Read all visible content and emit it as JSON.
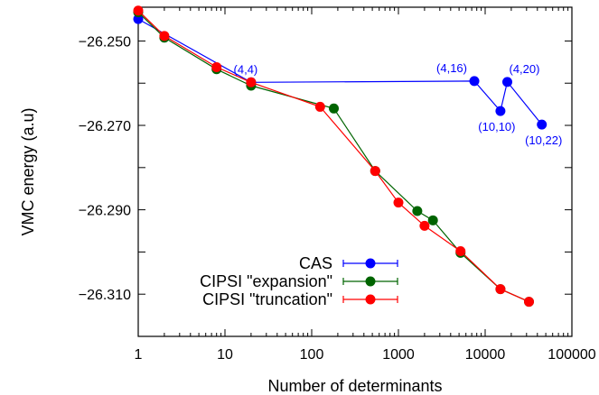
{
  "chart_data": {
    "type": "line",
    "xlabel": "Number of determinants",
    "ylabel": "VMC energy (a.u)",
    "xscale": "log",
    "xlim": [
      1,
      100000
    ],
    "ylim": [
      -26.32,
      -26.242
    ],
    "xticks": [
      1,
      10,
      100,
      1000,
      10000,
      100000
    ],
    "xtick_labels": [
      "1",
      "10",
      "100",
      "1000",
      "10000",
      "100000"
    ],
    "yticks": [
      -26.25,
      -26.26,
      -26.27,
      -26.28,
      -26.29,
      -26.3,
      -26.31
    ],
    "ytick_labels": [
      "−26.250",
      "",
      "−26.270",
      "",
      "−26.290",
      "",
      "−26.310"
    ],
    "legend_position": "bottom-left",
    "series": [
      {
        "name": "CAS",
        "color": "#0000ff",
        "x": [
          1,
          20,
          7500,
          15000,
          18000,
          45000
        ],
        "y": [
          -26.2448,
          -26.2598,
          -26.2595,
          -26.2666,
          -26.2597,
          -26.2698
        ]
      },
      {
        "name": "CIPSI \"expansion\"",
        "color": "#006400",
        "x": [
          1,
          2,
          8,
          20,
          180,
          540,
          1650,
          2500,
          5200,
          15000,
          32000
        ],
        "y": [
          -26.2432,
          -26.2492,
          -26.2567,
          -26.2606,
          -26.266,
          -26.2808,
          -26.2903,
          -26.2925,
          -26.3002,
          -26.3088,
          -26.3118
        ]
      },
      {
        "name": "CIPSI \"truncation\"",
        "color": "#ff0000",
        "x": [
          1,
          2,
          8,
          20,
          125,
          540,
          1000,
          2000,
          5200,
          15000,
          32000
        ],
        "y": [
          -26.2428,
          -26.2488,
          -26.2562,
          -26.2598,
          -26.2656,
          -26.2808,
          -26.2883,
          -26.2938,
          -26.2998,
          -26.3088,
          -26.3118
        ]
      }
    ],
    "annotations": [
      {
        "text": "(4,4)",
        "x": 20,
        "y": -26.2598,
        "anchor": "bottom"
      },
      {
        "text": "(4,16)",
        "x": 7500,
        "y": -26.2595,
        "anchor": "top-left"
      },
      {
        "text": "(10,10)",
        "x": 15000,
        "y": -26.2666,
        "anchor": "bottom"
      },
      {
        "text": "(4,20)",
        "x": 18000,
        "y": -26.2597,
        "anchor": "top-right"
      },
      {
        "text": "(10,22)",
        "x": 45000,
        "y": -26.2698,
        "anchor": "bottom"
      }
    ]
  }
}
